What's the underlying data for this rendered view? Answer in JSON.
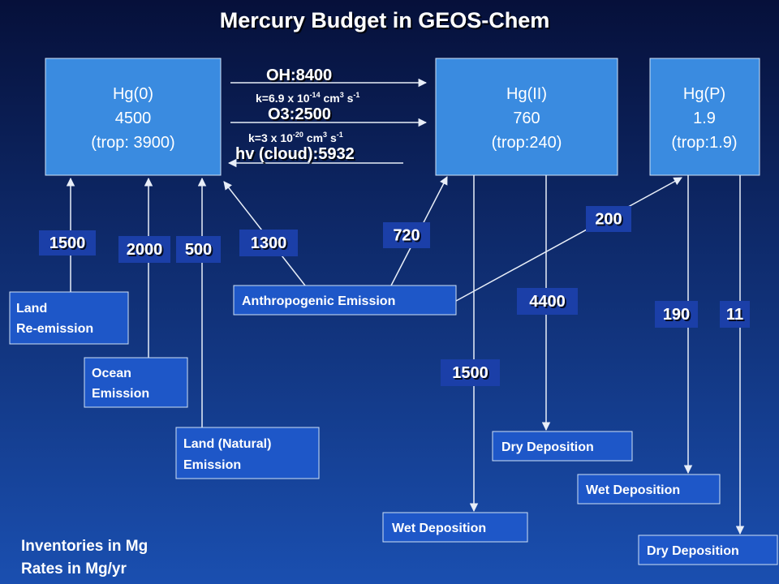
{
  "title": "Mercury Budget in GEOS-Chem",
  "reservoirs": [
    {
      "name": "Hg(0)",
      "amount": "4500",
      "trop": "(trop: 3900)"
    },
    {
      "name": "Hg(II)",
      "amount": "760",
      "trop": "(trop:240)"
    },
    {
      "name": "Hg(P)",
      "amount": "1.9",
      "trop": "(trop:1.9)"
    }
  ],
  "reactions": [
    {
      "label": "OH:8400",
      "rate": "k=6.9 x 10",
      "rate_exp": "-14",
      "unit": "cm",
      "unit_exp": "3",
      "per": "s",
      "per_exp": "-1"
    },
    {
      "label": "O3:2500",
      "rate": "k=3 x 10",
      "rate_exp": "-20",
      "unit": "cm",
      "unit_exp": "3",
      "per": "s",
      "per_exp": "-1"
    }
  ],
  "photolysis": "hv (cloud):5932",
  "sources": [
    {
      "lines": [
        "Land",
        "Re-emission"
      ]
    },
    {
      "lines": [
        "Ocean",
        "Emission"
      ]
    },
    {
      "lines": [
        "Land (Natural)",
        "Emission"
      ]
    },
    {
      "lines": [
        "Anthropogenic Emission"
      ]
    }
  ],
  "fluxes": [
    "1500",
    "2000",
    "500",
    "1300",
    "720",
    "200",
    "4400",
    "1500",
    "190",
    "11"
  ],
  "sinks": [
    "Wet Deposition",
    "Dry Deposition",
    "Wet Deposition",
    "Dry Deposition"
  ],
  "notes": [
    "Inventories in Mg",
    "Rates in Mg/yr"
  ]
}
